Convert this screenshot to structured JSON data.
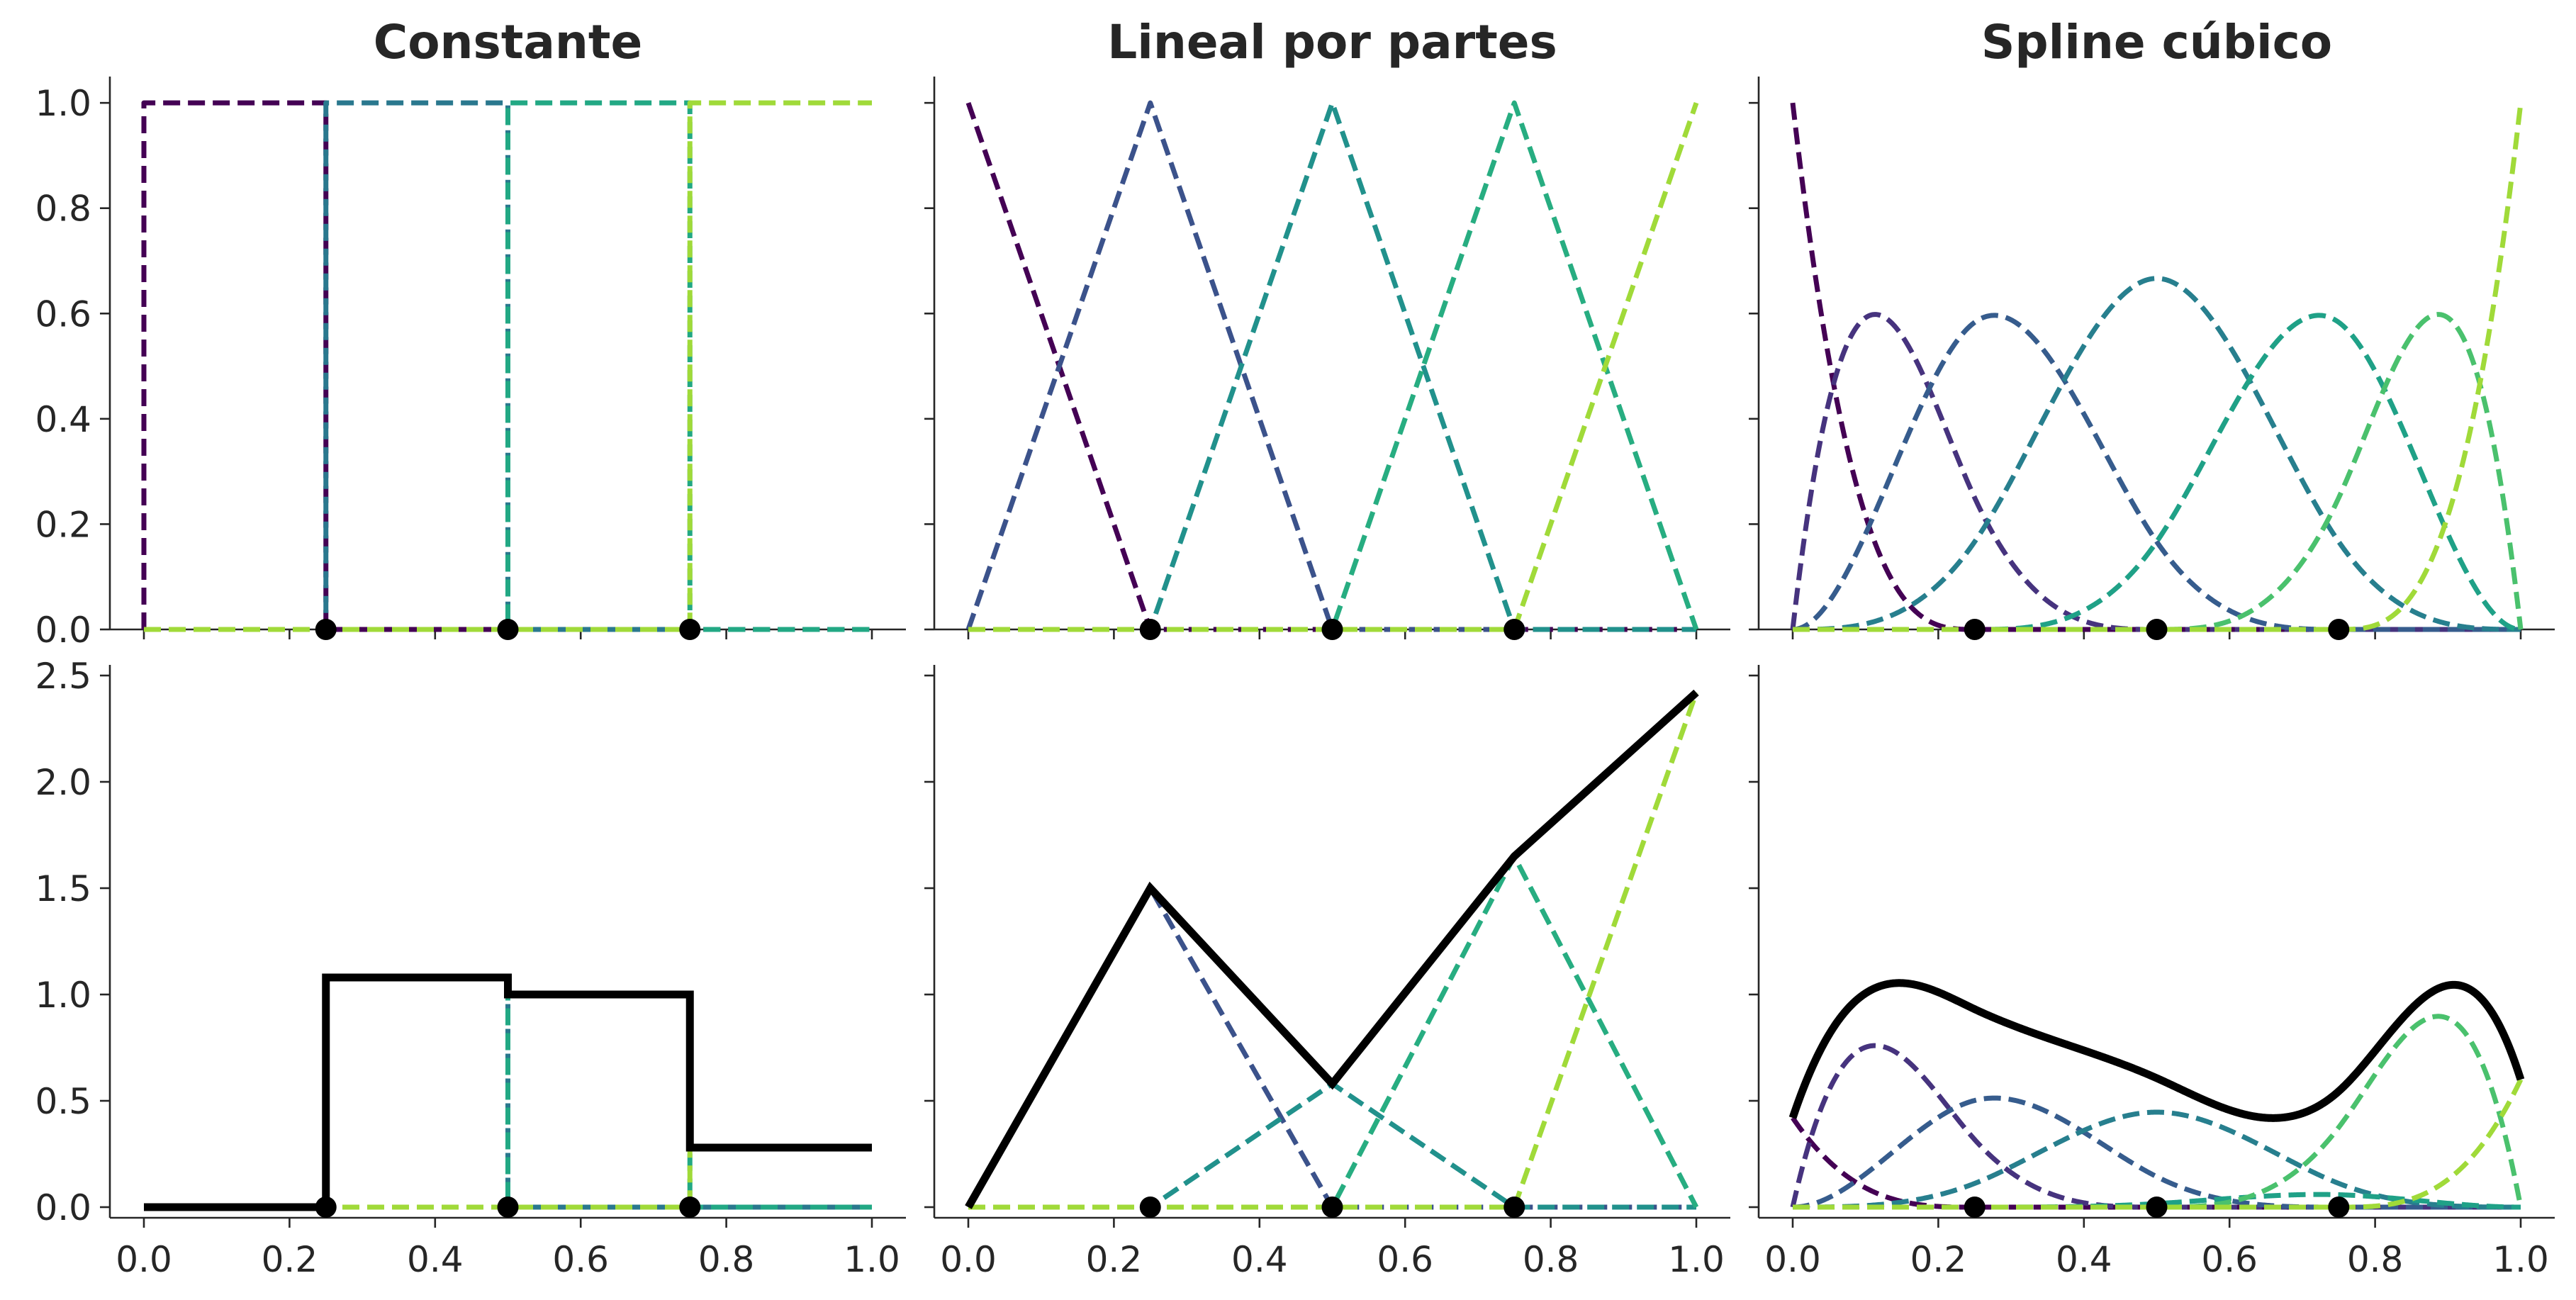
{
  "chart_data": {
    "type": "line",
    "layout": "2x3 grid of subplots",
    "titles": [
      "Constante",
      "Lineal por partes",
      "Spline cúbico"
    ],
    "x_range": [
      0,
      1
    ],
    "x_ticks": [
      "0.0",
      "0.2",
      "0.4",
      "0.6",
      "0.8",
      "1.0"
    ],
    "top_row": {
      "ylim": [
        0,
        1.05
      ],
      "y_ticks": [
        "0.0",
        "0.2",
        "0.4",
        "0.6",
        "0.8",
        "1.0"
      ]
    },
    "bottom_row": {
      "ylim": [
        -0.05,
        2.55
      ],
      "y_ticks": [
        "0.0",
        "0.5",
        "1.0",
        "1.5",
        "2.0",
        "2.5"
      ]
    },
    "knots": [
      0.25,
      0.5,
      0.75
    ],
    "grid": false,
    "basis_line_style": "dashed",
    "sum_line_color": "#000000",
    "knot_marker_color": "#000000",
    "panels": {
      "constant": {
        "basis_colors": [
          "#440154",
          "#2a788e",
          "#22a884",
          "#a0da39"
        ],
        "intervals": [
          [
            0,
            0.25
          ],
          [
            0.25,
            0.5
          ],
          [
            0.5,
            0.75
          ],
          [
            0.75,
            1.0
          ]
        ],
        "coefficients": [
          0.0,
          1.08,
          1.0,
          0.28
        ]
      },
      "linear": {
        "basis_colors": [
          "#440154",
          "#3b528b",
          "#21918c",
          "#27ad81",
          "#a0da39"
        ],
        "knots_full": [
          0,
          0.25,
          0.5,
          0.75,
          1.0
        ],
        "coefficients": [
          0.0,
          1.5,
          0.58,
          1.65,
          2.42
        ]
      },
      "cubic": {
        "basis_colors": [
          "#440154",
          "#46337e",
          "#365c8d",
          "#277f8e",
          "#1fa187",
          "#4ac16d",
          "#a0da39"
        ],
        "coefficients": [
          0.42,
          1.27,
          0.86,
          0.67,
          0.1,
          1.5,
          0.6
        ]
      }
    }
  }
}
